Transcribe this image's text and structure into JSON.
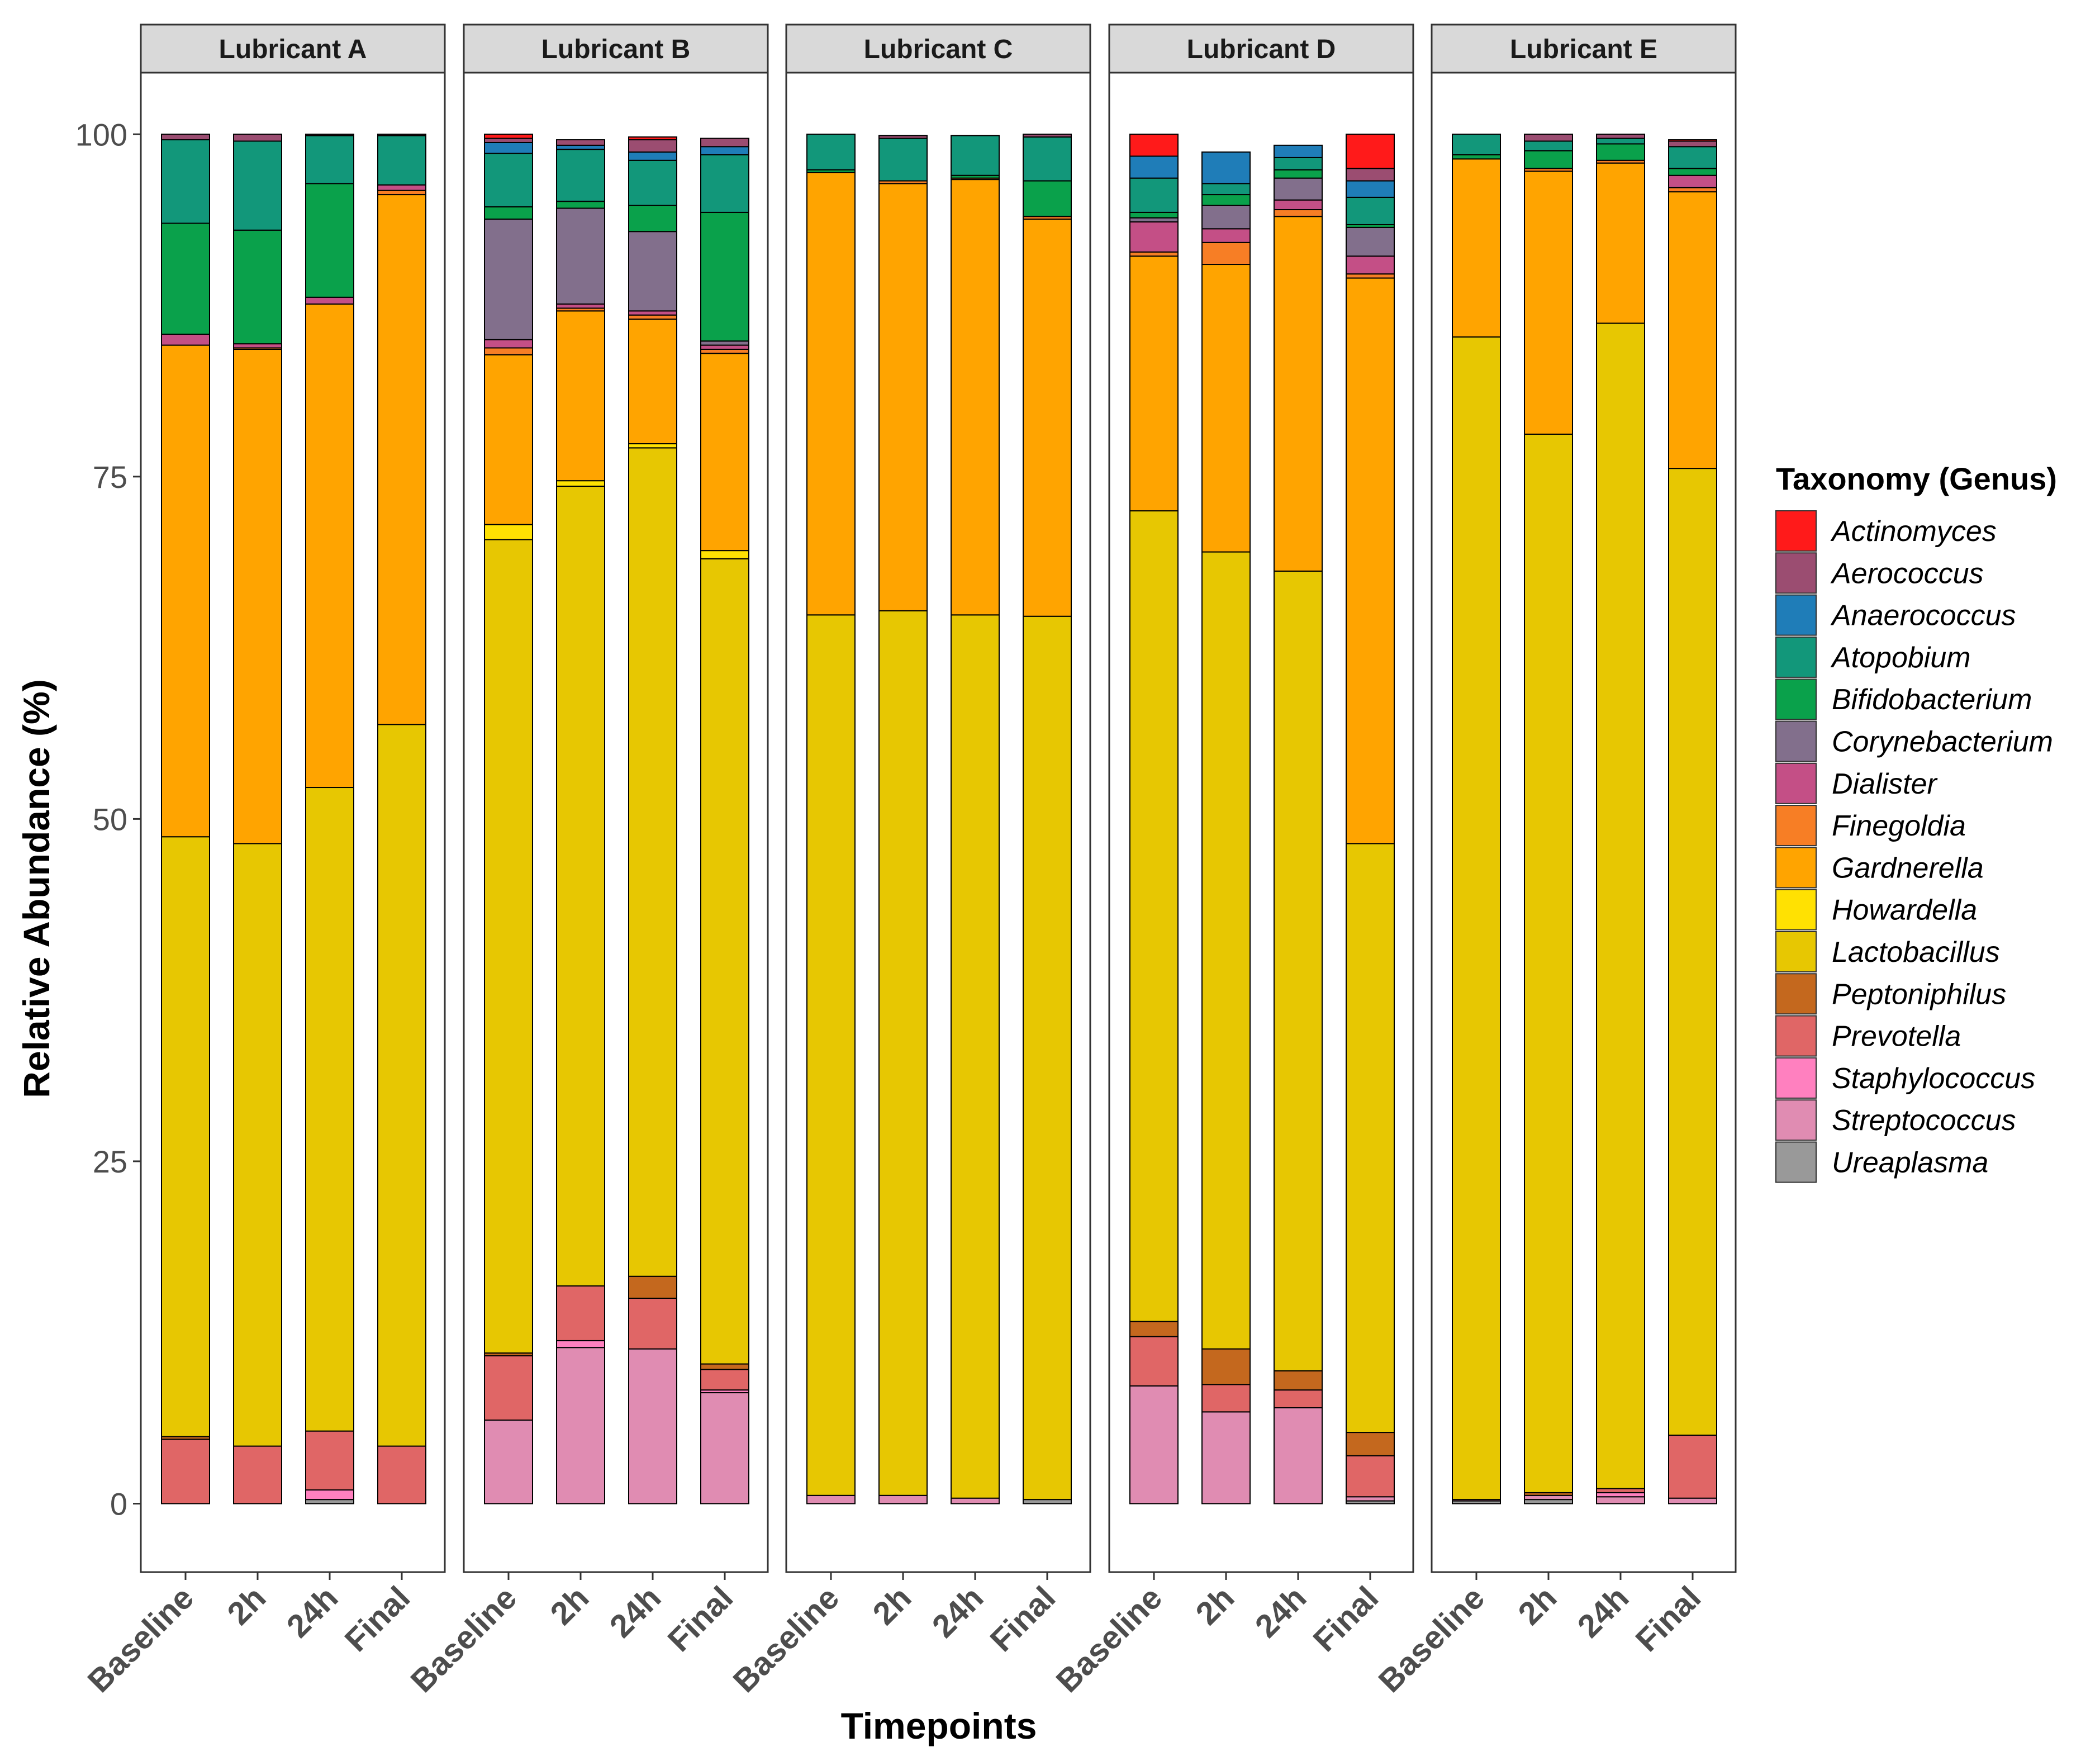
{
  "chart_data": {
    "type": "bar",
    "stacked": true,
    "title": "",
    "xlabel": "Timepoints",
    "ylabel": "Relative Abundance (%)",
    "ylim": [
      -5,
      104.5
    ],
    "yticks": [
      0,
      25,
      50,
      75,
      100
    ],
    "yticklabels": [
      "0",
      "25",
      "50",
      "75",
      "100"
    ],
    "categories": [
      "Baseline",
      "2h",
      "24h",
      "Final"
    ],
    "facets": [
      "Lubricant A",
      "Lubricant B",
      "Lubricant C",
      "Lubricant D",
      "Lubricant E"
    ],
    "legend_title": "Taxonomy (Genus)",
    "legend_position": "right",
    "grid": false,
    "genera": [
      "Actinomyces",
      "Aerococcus",
      "Anaerococcus",
      "Atopobium",
      "Bifidobacterium",
      "Corynebacterium",
      "Dialister",
      "Finegoldia",
      "Gardnerella",
      "Howardella",
      "Lactobacillus",
      "Peptoniphilus",
      "Prevotella",
      "Staphylococcus",
      "Streptococcus",
      "Ureaplasma"
    ],
    "colors": {
      "Actinomyces": "#ff1a1a",
      "Aerococcus": "#9b4d71",
      "Anaerococcus": "#1f7db8",
      "Atopobium": "#12977a",
      "Bifidobacterium": "#0aa14b",
      "Corynebacterium": "#826f8c",
      "Dialister": "#c44f86",
      "Finegoldia": "#f77e25",
      "Gardnerella": "#ffa400",
      "Howardella": "#ffe102",
      "Lactobacillus": "#e7c702",
      "Peptoniphilus": "#c4681e",
      "Prevotella": "#e06666",
      "Staphylococcus": "#ff80bf",
      "Streptococcus": "#e08cb2",
      "Ureaplasma": "#999999"
    },
    "stack_order_bottom_to_top": [
      "Ureaplasma",
      "Streptococcus",
      "Staphylococcus",
      "Prevotella",
      "Peptoniphilus",
      "Lactobacillus",
      "Howardella",
      "Gardnerella",
      "Finegoldia",
      "Dialister",
      "Corynebacterium",
      "Bifidobacterium",
      "Atopobium",
      "Anaerococcus",
      "Aerococcus",
      "Actinomyces"
    ],
    "data": {
      "Lubricant A": {
        "Baseline": {
          "Prevotella": 4.7,
          "Peptoniphilus": 0.2,
          "Lactobacillus": 43.8,
          "Gardnerella": 35.9,
          "Dialister": 0.8,
          "Bifidobacterium": 8.1,
          "Atopobium": 6.1,
          "Aerococcus": 0.4
        },
        "2h": {
          "Prevotella": 4.2,
          "Lactobacillus": 44.0,
          "Gardnerella": 36.1,
          "Finegoldia": 0.1,
          "Dialister": 0.3,
          "Bifidobacterium": 8.3,
          "Atopobium": 6.5,
          "Aerococcus": 0.5
        },
        "24h": {
          "Ureaplasma": 0.3,
          "Staphylococcus": 0.7,
          "Prevotella": 4.3,
          "Lactobacillus": 47.0,
          "Gardnerella": 35.3,
          "Dialister": 0.5,
          "Bifidobacterium": 8.3,
          "Atopobium": 3.5,
          "Aerococcus": 0.1
        },
        "Final": {
          "Prevotella": 4.2,
          "Lactobacillus": 52.7,
          "Gardnerella": 38.7,
          "Finegoldia": 0.3,
          "Dialister": 0.4,
          "Atopobium": 3.6,
          "Aerococcus": 0.1
        }
      },
      "Lubricant B": {
        "Baseline": {
          "Streptococcus": 6.1,
          "Prevotella": 4.7,
          "Peptoniphilus": 0.2,
          "Lactobacillus": 59.4,
          "Howardella": 1.1,
          "Gardnerella": 12.4,
          "Finegoldia": 0.5,
          "Dialister": 0.6,
          "Corynebacterium": 8.8,
          "Bifidobacterium": 0.9,
          "Atopobium": 3.9,
          "Anaerococcus": 0.8,
          "Aerococcus": 0.3,
          "Actinomyces": 0.3
        },
        "2h": {
          "Streptococcus": 11.4,
          "Staphylococcus": 0.5,
          "Prevotella": 4.0,
          "Lactobacillus": 58.4,
          "Howardella": 0.4,
          "Gardnerella": 12.4,
          "Finegoldia": 0.2,
          "Dialister": 0.3,
          "Corynebacterium": 7.0,
          "Bifidobacterium": 0.5,
          "Atopobium": 3.8,
          "Anaerococcus": 0.3,
          "Aerococcus": 0.4
        },
        "24h": {
          "Streptococcus": 11.3,
          "Prevotella": 3.7,
          "Peptoniphilus": 1.6,
          "Lactobacillus": 60.5,
          "Howardella": 0.3,
          "Gardnerella": 9.1,
          "Finegoldia": 0.3,
          "Dialister": 0.3,
          "Corynebacterium": 5.8,
          "Bifidobacterium": 1.9,
          "Atopobium": 3.3,
          "Anaerococcus": 0.6,
          "Aerococcus": 0.9,
          "Actinomyces": 0.2
        },
        "Final": {
          "Streptococcus": 8.1,
          "Staphylococcus": 0.2,
          "Prevotella": 1.5,
          "Peptoniphilus": 0.4,
          "Lactobacillus": 58.8,
          "Howardella": 0.6,
          "Gardnerella": 14.4,
          "Finegoldia": 0.3,
          "Dialister": 0.3,
          "Corynebacterium": 0.3,
          "Bifidobacterium": 9.4,
          "Atopobium": 4.2,
          "Anaerococcus": 0.6,
          "Aerococcus": 0.6
        }
      },
      "Lubricant C": {
        "Baseline": {
          "Streptococcus": 0.6,
          "Lactobacillus": 64.3,
          "Gardnerella": 32.3,
          "Atopobium": 2.6,
          "Bifidobacterium": 0.2
        },
        "2h": {
          "Streptococcus": 0.6,
          "Lactobacillus": 64.6,
          "Gardnerella": 31.2,
          "Finegoldia": 0.2,
          "Atopobium": 3.1,
          "Aerococcus": 0.2
        },
        "24h": {
          "Streptococcus": 0.4,
          "Lactobacillus": 64.5,
          "Gardnerella": 31.8,
          "Finegoldia": 0.1,
          "Atopobium": 2.9,
          "Bifidobacterium": 0.2
        },
        "Final": {
          "Ureaplasma": 0.3,
          "Lactobacillus": 64.5,
          "Gardnerella": 29.0,
          "Finegoldia": 0.2,
          "Bifidobacterium": 2.6,
          "Atopobium": 3.2,
          "Aerococcus": 0.2
        }
      },
      "Lubricant D": {
        "Baseline": {
          "Streptococcus": 8.6,
          "Prevotella": 3.6,
          "Peptoniphilus": 1.1,
          "Lactobacillus": 59.2,
          "Gardnerella": 18.6,
          "Finegoldia": 0.3,
          "Dialister": 2.2,
          "Corynebacterium": 0.3,
          "Bifidobacterium": 0.4,
          "Atopobium": 2.5,
          "Anaerococcus": 1.6,
          "Actinomyces": 1.6
        },
        "2h": {
          "Streptococcus": 6.7,
          "Prevotella": 2.0,
          "Peptoniphilus": 2.6,
          "Lactobacillus": 58.2,
          "Gardnerella": 21.0,
          "Finegoldia": 1.6,
          "Dialister": 1.0,
          "Corynebacterium": 1.7,
          "Bifidobacterium": 0.8,
          "Atopobium": 0.8,
          "Anaerococcus": 2.3
        },
        "24h": {
          "Streptococcus": 7.0,
          "Prevotella": 1.3,
          "Peptoniphilus": 1.4,
          "Lactobacillus": 58.4,
          "Gardnerella": 25.9,
          "Finegoldia": 0.5,
          "Dialister": 0.7,
          "Corynebacterium": 1.6,
          "Bifidobacterium": 0.6,
          "Atopobium": 0.9,
          "Anaerococcus": 0.9
        },
        "Final": {
          "Ureaplasma": 0.2,
          "Streptococcus": 0.3,
          "Prevotella": 3.0,
          "Peptoniphilus": 1.7,
          "Lactobacillus": 43.0,
          "Gardnerella": 41.3,
          "Finegoldia": 0.3,
          "Dialister": 1.3,
          "Corynebacterium": 2.1,
          "Bifidobacterium": 0.2,
          "Atopobium": 2.0,
          "Anaerococcus": 1.2,
          "Aerococcus": 0.9,
          "Actinomyces": 2.5
        }
      },
      "Lubricant E": {
        "Baseline": {
          "Ureaplasma": 0.2,
          "Streptococcus": 0.1,
          "Lactobacillus": 84.9,
          "Gardnerella": 13.0,
          "Bifidobacterium": 0.3,
          "Atopobium": 1.5
        },
        "2h": {
          "Ureaplasma": 0.3,
          "Streptococcus": 0.3,
          "Peptoniphilus": 0.2,
          "Lactobacillus": 77.3,
          "Gardnerella": 19.2,
          "Finegoldia": 0.2,
          "Bifidobacterium": 1.3,
          "Atopobium": 0.7,
          "Aerococcus": 0.5
        },
        "24h": {
          "Streptococcus": 0.5,
          "Staphylococcus": 0.3,
          "Prevotella": 0.3,
          "Lactobacillus": 85.1,
          "Gardnerella": 11.7,
          "Finegoldia": 0.2,
          "Bifidobacterium": 1.2,
          "Atopobium": 0.4,
          "Aerococcus": 0.3
        },
        "Final": {
          "Streptococcus": 0.4,
          "Prevotella": 4.6,
          "Lactobacillus": 70.6,
          "Gardnerella": 20.2,
          "Finegoldia": 0.3,
          "Dialister": 0.9,
          "Bifidobacterium": 0.5,
          "Atopobium": 1.6,
          "Aerococcus": 0.4,
          "Actinomyces": 0.1
        }
      }
    }
  }
}
